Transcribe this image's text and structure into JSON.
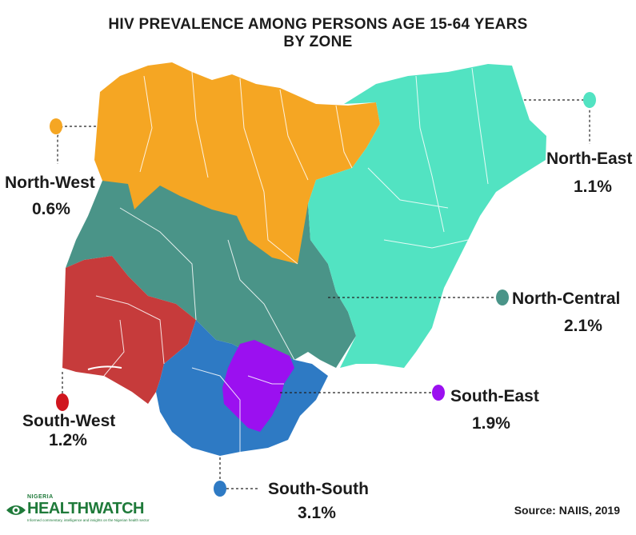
{
  "title": {
    "line1": "HIV PREVALENCE AMONG PERSONS AGE 15-64 YEARS",
    "line2": "BY ZONE"
  },
  "zones": [
    {
      "key": "north_west",
      "name": "North-West",
      "value": "0.6%",
      "color": "#F5A623"
    },
    {
      "key": "north_east",
      "name": "North-East",
      "value": "1.1%",
      "color": "#52E3C2"
    },
    {
      "key": "north_central",
      "name": "North-Central",
      "value": "2.1%",
      "color": "#4A9488"
    },
    {
      "key": "south_west",
      "name": "South-West",
      "value": "1.2%",
      "color": "#C63B3B"
    },
    {
      "key": "south_east",
      "name": "South-East",
      "value": "1.9%",
      "color": "#9B10F0"
    },
    {
      "key": "south_south",
      "name": "South-South",
      "value": "3.1%",
      "color": "#2E7AC4"
    }
  ],
  "markers": {
    "north_west": "#F5A623",
    "north_east": "#52E3C2",
    "north_central": "#4A9488",
    "south_west": "#D0161E",
    "south_east": "#9B10F0",
    "south_south": "#2E7AC4"
  },
  "source": "Source: NAIIS, 2019",
  "logo": {
    "small": "NIGERIA",
    "main": "HEALTHWATCH",
    "tagline": "Informed commentary, intelligence and insights on the Nigerian health sector"
  }
}
